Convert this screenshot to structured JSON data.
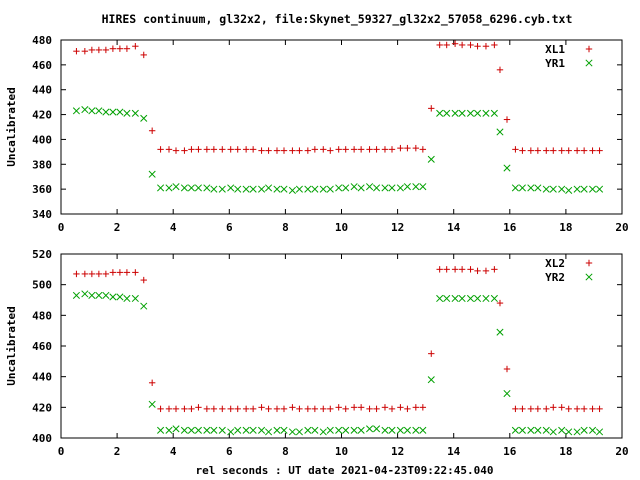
{
  "title": "HIRES continuum, gl32x2, file:Skynet_59327_gl32x2_57058_6296.cyb.txt",
  "chart_data": [
    {
      "type": "scatter",
      "ylabel": "Uncalibrated",
      "xlabel": "",
      "xlim": [
        0,
        20
      ],
      "ylim": [
        340,
        480
      ],
      "xticks": [
        0,
        2,
        4,
        6,
        8,
        10,
        12,
        14,
        16,
        18,
        20
      ],
      "yticks": [
        340,
        360,
        380,
        400,
        420,
        440,
        460,
        480
      ],
      "legend_position": "top-right",
      "series": [
        {
          "name": "XL1",
          "marker": "plus",
          "color": "#cc0000",
          "x": [
            0.55,
            0.85,
            1.1,
            1.35,
            1.6,
            1.85,
            2.1,
            2.35,
            2.65,
            2.95,
            3.25,
            3.55,
            3.85,
            4.1,
            4.4,
            4.65,
            4.9,
            5.2,
            5.45,
            5.75,
            6.05,
            6.3,
            6.6,
            6.85,
            7.15,
            7.4,
            7.7,
            7.95,
            8.25,
            8.5,
            8.8,
            9.05,
            9.35,
            9.6,
            9.9,
            10.15,
            10.45,
            10.7,
            11.0,
            11.25,
            11.55,
            11.8,
            12.1,
            12.35,
            12.65,
            12.9,
            13.2,
            13.5,
            13.75,
            14.05,
            14.3,
            14.6,
            14.85,
            15.15,
            15.45,
            15.65,
            15.9,
            16.2,
            16.45,
            16.75,
            17.0,
            17.3,
            17.55,
            17.85,
            18.1,
            18.4,
            18.65,
            18.95,
            19.2
          ],
          "y": [
            471,
            471,
            472,
            472,
            472,
            473,
            473,
            473,
            475,
            468,
            407,
            392,
            392,
            391,
            391,
            392,
            392,
            392,
            392,
            392,
            392,
            392,
            392,
            392,
            391,
            391,
            391,
            391,
            391,
            391,
            391,
            392,
            392,
            391,
            392,
            392,
            392,
            392,
            392,
            392,
            392,
            392,
            393,
            393,
            393,
            392,
            425,
            476,
            476,
            477,
            476,
            476,
            475,
            475,
            476,
            456,
            416,
            392,
            391,
            391,
            391,
            391,
            391,
            391,
            391,
            391,
            391,
            391,
            391
          ]
        },
        {
          "name": "YR1",
          "marker": "cross",
          "color": "#00a000",
          "x": [
            0.55,
            0.85,
            1.1,
            1.35,
            1.6,
            1.85,
            2.1,
            2.35,
            2.65,
            2.95,
            3.25,
            3.55,
            3.85,
            4.1,
            4.4,
            4.65,
            4.9,
            5.2,
            5.45,
            5.75,
            6.05,
            6.3,
            6.6,
            6.85,
            7.15,
            7.4,
            7.7,
            7.95,
            8.25,
            8.5,
            8.8,
            9.05,
            9.35,
            9.6,
            9.9,
            10.15,
            10.45,
            10.7,
            11.0,
            11.25,
            11.55,
            11.8,
            12.1,
            12.35,
            12.65,
            12.9,
            13.2,
            13.5,
            13.75,
            14.05,
            14.3,
            14.6,
            14.85,
            15.15,
            15.45,
            15.65,
            15.9,
            16.2,
            16.45,
            16.75,
            17.0,
            17.3,
            17.55,
            17.85,
            18.1,
            18.4,
            18.65,
            18.95,
            19.2
          ],
          "y": [
            423,
            424,
            423,
            423,
            422,
            422,
            422,
            421,
            421,
            417,
            372,
            361,
            361,
            362,
            361,
            361,
            361,
            361,
            360,
            360,
            361,
            360,
            360,
            360,
            360,
            361,
            360,
            360,
            359,
            360,
            360,
            360,
            360,
            360,
            361,
            361,
            362,
            361,
            362,
            361,
            361,
            361,
            361,
            362,
            362,
            362,
            384,
            421,
            421,
            421,
            421,
            421,
            421,
            421,
            421,
            406,
            377,
            361,
            361,
            361,
            361,
            360,
            360,
            360,
            359,
            360,
            360,
            360,
            360
          ]
        }
      ]
    },
    {
      "type": "scatter",
      "ylabel": "Uncalibrated",
      "xlabel": "rel seconds : UT date 2021-04-23T09:22:45.040",
      "xlim": [
        0,
        20
      ],
      "ylim": [
        400,
        520
      ],
      "xticks": [
        0,
        2,
        4,
        6,
        8,
        10,
        12,
        14,
        16,
        18,
        20
      ],
      "yticks": [
        400,
        420,
        440,
        460,
        480,
        500,
        520
      ],
      "legend_position": "top-right",
      "series": [
        {
          "name": "XL2",
          "marker": "plus",
          "color": "#cc0000",
          "x": [
            0.55,
            0.85,
            1.1,
            1.35,
            1.6,
            1.85,
            2.1,
            2.35,
            2.65,
            2.95,
            3.25,
            3.55,
            3.85,
            4.1,
            4.4,
            4.65,
            4.9,
            5.2,
            5.45,
            5.75,
            6.05,
            6.3,
            6.6,
            6.85,
            7.15,
            7.4,
            7.7,
            7.95,
            8.25,
            8.5,
            8.8,
            9.05,
            9.35,
            9.6,
            9.9,
            10.15,
            10.45,
            10.7,
            11.0,
            11.25,
            11.55,
            11.8,
            12.1,
            12.35,
            12.65,
            12.9,
            13.2,
            13.5,
            13.75,
            14.05,
            14.3,
            14.6,
            14.85,
            15.15,
            15.45,
            15.65,
            15.9,
            16.2,
            16.45,
            16.75,
            17.0,
            17.3,
            17.55,
            17.85,
            18.1,
            18.4,
            18.65,
            18.95,
            19.2
          ],
          "y": [
            507,
            507,
            507,
            507,
            507,
            508,
            508,
            508,
            508,
            503,
            436,
            419,
            419,
            419,
            419,
            419,
            420,
            419,
            419,
            419,
            419,
            419,
            419,
            419,
            420,
            419,
            419,
            419,
            420,
            419,
            419,
            419,
            419,
            419,
            420,
            419,
            420,
            420,
            419,
            419,
            420,
            419,
            420,
            419,
            420,
            420,
            455,
            510,
            510,
            510,
            510,
            510,
            509,
            509,
            510,
            488,
            445,
            419,
            419,
            419,
            419,
            419,
            420,
            420,
            419,
            419,
            419,
            419,
            419
          ]
        },
        {
          "name": "YR2",
          "marker": "cross",
          "color": "#00a000",
          "x": [
            0.55,
            0.85,
            1.1,
            1.35,
            1.6,
            1.85,
            2.1,
            2.35,
            2.65,
            2.95,
            3.25,
            3.55,
            3.85,
            4.1,
            4.4,
            4.65,
            4.9,
            5.2,
            5.45,
            5.75,
            6.05,
            6.3,
            6.6,
            6.85,
            7.15,
            7.4,
            7.7,
            7.95,
            8.25,
            8.5,
            8.8,
            9.05,
            9.35,
            9.6,
            9.9,
            10.15,
            10.45,
            10.7,
            11.0,
            11.25,
            11.55,
            11.8,
            12.1,
            12.35,
            12.65,
            12.9,
            13.2,
            13.5,
            13.75,
            14.05,
            14.3,
            14.6,
            14.85,
            15.15,
            15.45,
            15.65,
            15.9,
            16.2,
            16.45,
            16.75,
            17.0,
            17.3,
            17.55,
            17.85,
            18.1,
            18.4,
            18.65,
            18.95,
            19.2
          ],
          "y": [
            493,
            494,
            493,
            493,
            493,
            492,
            492,
            491,
            491,
            486,
            422,
            405,
            405,
            406,
            405,
            405,
            405,
            405,
            405,
            405,
            404,
            405,
            405,
            405,
            405,
            404,
            405,
            405,
            404,
            404,
            405,
            405,
            404,
            405,
            405,
            405,
            405,
            405,
            406,
            406,
            405,
            405,
            405,
            405,
            405,
            405,
            438,
            491,
            491,
            491,
            491,
            491,
            491,
            491,
            491,
            469,
            429,
            405,
            405,
            405,
            405,
            405,
            404,
            405,
            404,
            404,
            405,
            405,
            404
          ]
        }
      ]
    }
  ]
}
